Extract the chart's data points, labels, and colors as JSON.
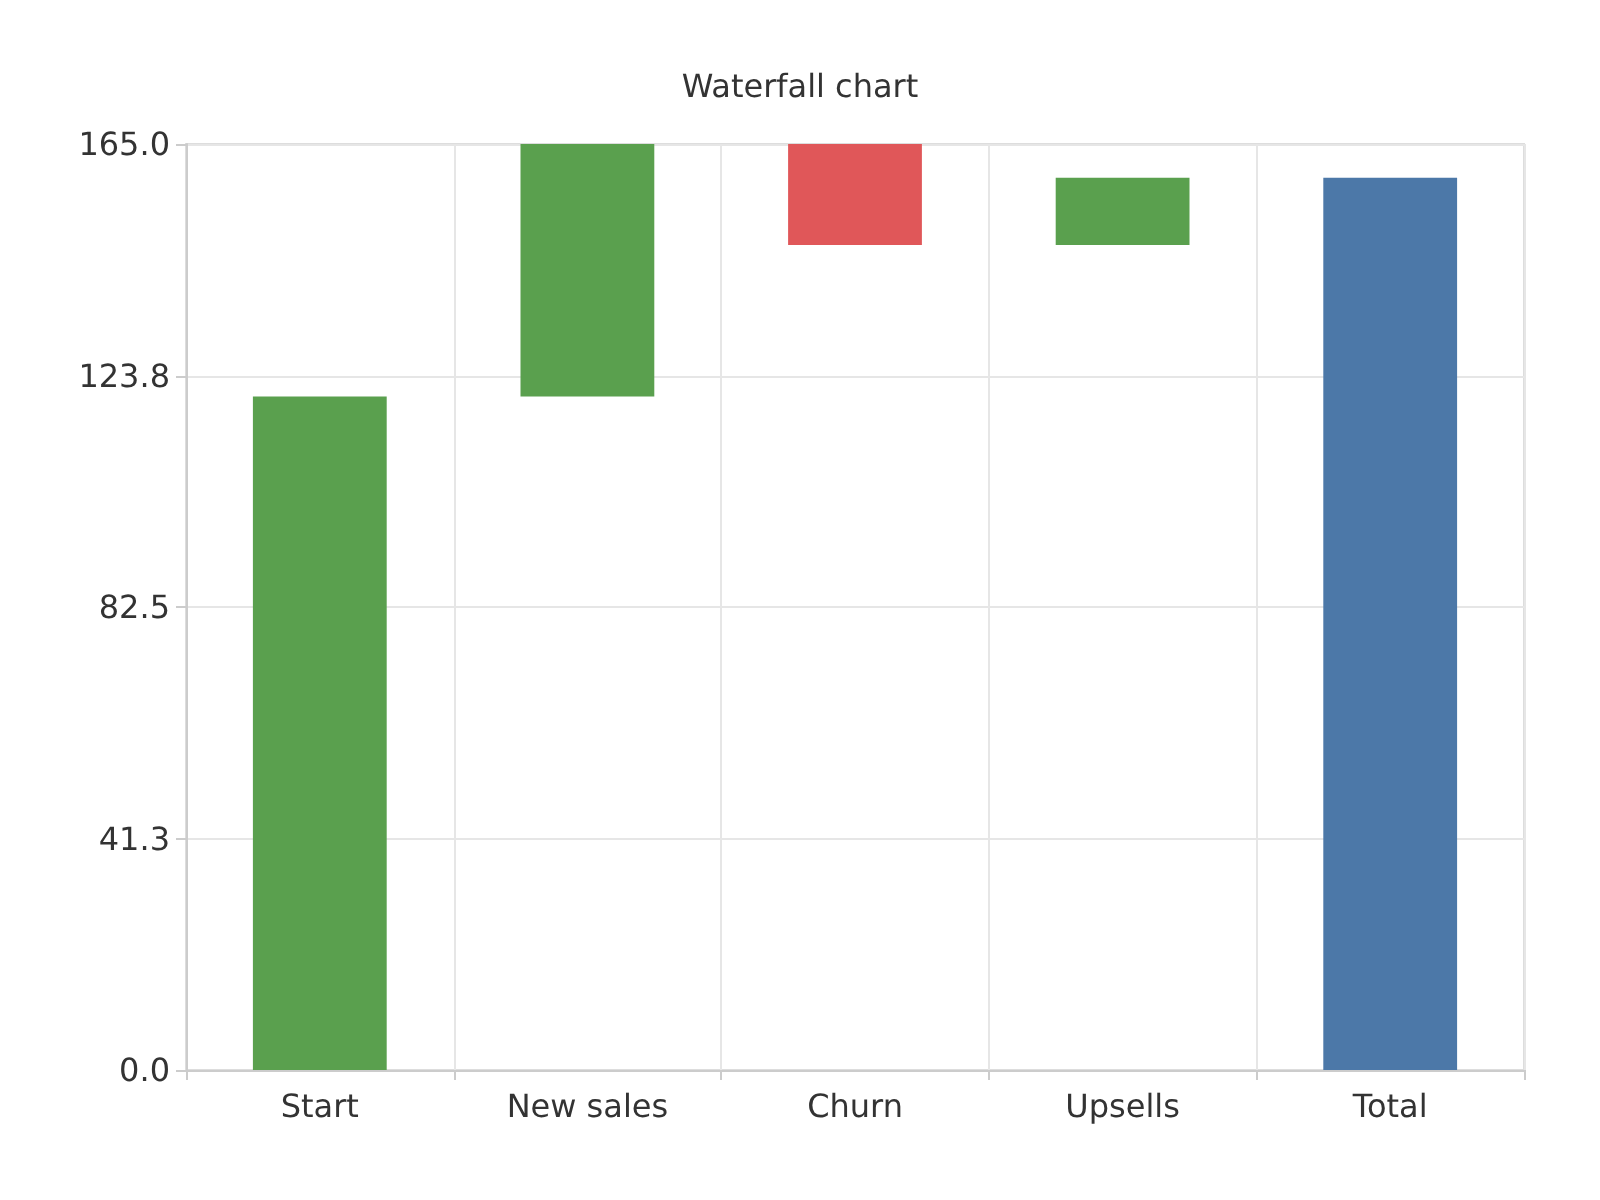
{
  "chart_data": {
    "type": "bar",
    "title": "Waterfall chart",
    "categories": [
      "Start",
      "New sales",
      "Churn",
      "Upsells",
      "Total"
    ],
    "values": [
      120,
      45,
      18,
      12,
      159
    ],
    "base": [
      0,
      120,
      147,
      147,
      0
    ],
    "colors": [
      "#5aa04e",
      "#5aa04e",
      "#e05759",
      "#5aa04e",
      "#4c78a8"
    ],
    "ylim": [
      0,
      165
    ],
    "yticks": [
      {
        "value": 0,
        "label": "0.0"
      },
      {
        "value": 41.25,
        "label": "41.3"
      },
      {
        "value": 82.5,
        "label": "82.5"
      },
      {
        "value": 123.75,
        "label": "123.8"
      },
      {
        "value": 165,
        "label": "165.0"
      }
    ],
    "grid": true
  }
}
